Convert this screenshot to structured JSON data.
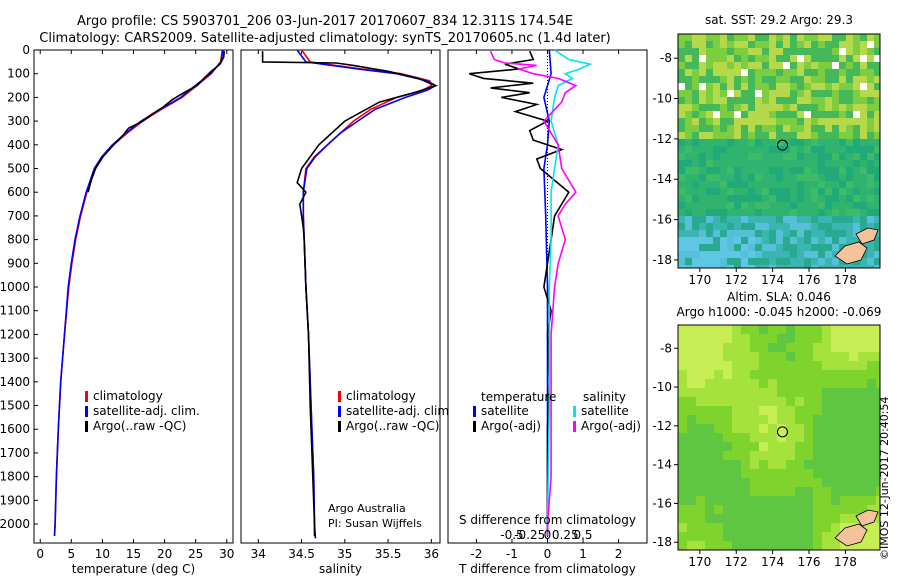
{
  "header": {
    "line1": "Argo profile: CS 5903701_206 03-Jun-2017 20170607_834 12.311S 174.54E",
    "line2": "Climatology: CARS2009. Satellite-adjusted climatology: synTS_20170605.nc (1.4d later)"
  },
  "colors": {
    "clim": "#ff0000",
    "sat": "#0000ff",
    "argo": "#000000",
    "sat_s": "#00e5ee",
    "argo_s": "#ff00ff"
  },
  "chart_data": [
    {
      "id": "temperature",
      "type": "line",
      "xlabel": "temperature (deg C)",
      "ylabel": "",
      "xlim": [
        -1,
        31
      ],
      "ylim": [
        2080,
        0
      ],
      "xticks": [
        0,
        5,
        10,
        15,
        20,
        25,
        30
      ],
      "yticks": [
        0,
        100,
        200,
        300,
        400,
        500,
        600,
        700,
        800,
        900,
        1000,
        1100,
        1200,
        1300,
        1400,
        1500,
        1600,
        1700,
        1800,
        1900,
        2000
      ],
      "legend": [
        "climatology",
        "satellite-adj. clim.",
        "Argo(..raw -QC)"
      ],
      "series": [
        {
          "name": "climatology",
          "color_key": "clim",
          "depth": [
            0,
            50,
            100,
            150,
            200,
            250,
            300,
            350,
            400,
            450,
            500,
            600,
            700,
            800,
            900,
            1000,
            1200,
            1400,
            1600,
            1800,
            2000,
            2050
          ],
          "values": [
            29.3,
            29.0,
            27.5,
            25.2,
            22.8,
            19.5,
            16.5,
            14.0,
            11.8,
            10.0,
            8.8,
            7.5,
            6.5,
            5.7,
            5.1,
            4.6,
            3.9,
            3.3,
            2.9,
            2.6,
            2.4,
            2.3
          ]
        },
        {
          "name": "satellite",
          "color_key": "sat",
          "depth": [
            0,
            50,
            100,
            150,
            200,
            250,
            300,
            350,
            400,
            450,
            500,
            600,
            700,
            800,
            900,
            1000,
            1200,
            1400,
            1600,
            1800,
            2000,
            2050
          ],
          "values": [
            29.4,
            29.1,
            27.4,
            24.9,
            22.6,
            19.3,
            16.2,
            13.8,
            11.6,
            9.9,
            8.7,
            7.4,
            6.4,
            5.6,
            5.0,
            4.5,
            3.9,
            3.3,
            2.9,
            2.6,
            2.4,
            2.3
          ]
        },
        {
          "name": "argo",
          "color_key": "argo",
          "depth": [
            5,
            30,
            60,
            90,
            120,
            150,
            180,
            210,
            240,
            270,
            300,
            330,
            360,
            400,
            450,
            500,
            550,
            600
          ],
          "values": [
            29.6,
            29.5,
            28.9,
            27.5,
            26.3,
            25.2,
            23.1,
            21.2,
            19.8,
            18.0,
            16.5,
            14.2,
            13.3,
            11.8,
            10.1,
            8.9,
            8.2,
            7.7
          ]
        }
      ]
    },
    {
      "id": "salinity",
      "type": "line",
      "xlabel": "salinity",
      "ylabel": "",
      "xlim": [
        33.8,
        36.1
      ],
      "ylim": [
        2080,
        0
      ],
      "xticks": [
        34,
        34.5,
        35,
        35.5,
        36
      ],
      "legend": [
        "climatology",
        "satellite-adj. clim.",
        "Argo(..raw -QC)"
      ],
      "annotation": [
        "Argo Australia",
        "PI: Susan Wijffels"
      ],
      "series": [
        {
          "name": "climatology",
          "color_key": "clim",
          "depth": [
            0,
            50,
            80,
            100,
            130,
            150,
            170,
            200,
            250,
            300,
            350,
            400,
            450,
            500,
            600,
            700,
            800,
            1000,
            1200,
            1400,
            1600,
            1800,
            2000,
            2050
          ],
          "values": [
            34.5,
            34.6,
            35.2,
            35.65,
            35.98,
            36.0,
            35.9,
            35.6,
            35.3,
            35.1,
            34.95,
            34.8,
            34.65,
            34.55,
            34.52,
            34.52,
            34.53,
            34.55,
            34.58,
            34.6,
            34.62,
            34.64,
            34.65,
            34.65
          ]
        },
        {
          "name": "satellite",
          "color_key": "sat",
          "depth": [
            0,
            50,
            80,
            100,
            130,
            150,
            170,
            200,
            250,
            300,
            350,
            400,
            450,
            500,
            600,
            700,
            800,
            1000,
            1200,
            1400,
            1600,
            1800,
            2000,
            2050
          ],
          "values": [
            34.45,
            34.55,
            35.15,
            35.6,
            35.95,
            36.05,
            35.95,
            35.7,
            35.35,
            35.15,
            34.95,
            34.8,
            34.66,
            34.56,
            34.52,
            34.52,
            34.53,
            34.55,
            34.58,
            34.6,
            34.62,
            34.64,
            34.65,
            34.65
          ]
        },
        {
          "name": "argo",
          "color_key": "argo",
          "depth": [
            5,
            50,
            55,
            65,
            90,
            120,
            150,
            180,
            220,
            260,
            300,
            350,
            400,
            450,
            500,
            560,
            600,
            650,
            700,
            750,
            800,
            1000,
            1200,
            1500,
            1800,
            2000,
            2060
          ],
          "values": [
            34.05,
            34.05,
            34.9,
            35.1,
            35.5,
            35.85,
            36.05,
            35.8,
            35.4,
            35.2,
            35.0,
            34.85,
            34.7,
            34.6,
            34.5,
            34.45,
            34.55,
            34.48,
            34.5,
            34.52,
            34.53,
            34.55,
            34.58,
            34.6,
            34.63,
            34.65,
            34.66
          ]
        }
      ]
    },
    {
      "id": "difference",
      "type": "line",
      "xlabel": "T difference from climatology",
      "ylabel": "",
      "xlim": [
        -2.8,
        2.8
      ],
      "ylim": [
        2080,
        0
      ],
      "xticks": [
        -2,
        -1,
        0,
        1,
        2
      ],
      "secondary_xlabel": "S difference from climatology",
      "secondary_xticks": [
        "-0.5",
        "-0.25",
        "0",
        "0.25",
        "0.5"
      ],
      "legend_temperature_title": "temperature",
      "legend_salinity_title": "salinity",
      "legend": [
        "satellite",
        "Argo(-adj)",
        "satellite",
        "Argo(-adj)"
      ],
      "series": [
        {
          "name": "T satellite",
          "color_key": "sat",
          "depth": [
            0,
            100,
            200,
            300,
            400,
            500,
            700,
            1000,
            1500,
            2000,
            2050
          ],
          "values": [
            0.05,
            0.1,
            -0.1,
            0.05,
            0.0,
            -0.1,
            -0.05,
            0.0,
            0.0,
            0.0,
            0.0
          ]
        },
        {
          "name": "T Argo",
          "color_key": "argo",
          "depth": [
            5,
            40,
            60,
            80,
            100,
            120,
            140,
            160,
            180,
            200,
            230,
            260,
            300,
            340,
            380,
            420,
            460,
            500,
            550,
            600,
            650,
            700,
            800,
            900,
            1000,
            1100,
            1200,
            1400,
            1600,
            1800,
            2000,
            2050
          ],
          "values": [
            -0.5,
            -0.4,
            -1.2,
            -0.8,
            -2.2,
            -1.8,
            -0.4,
            -1.6,
            -0.5,
            -1.3,
            -0.3,
            -0.9,
            0.0,
            -0.5,
            -0.4,
            0.4,
            -0.3,
            -0.2,
            0.2,
            0.6,
            0.4,
            0.2,
            0.1,
            0.0,
            -0.1,
            0.1,
            0.0,
            0.05,
            0.0,
            0.0,
            0.0,
            0.0
          ]
        },
        {
          "name": "S satellite",
          "color_key": "sat_s",
          "depth": [
            0,
            40,
            60,
            80,
            100,
            120,
            150,
            200,
            300,
            400,
            500,
            600,
            700,
            800,
            1000,
            1500,
            2000,
            2050
          ],
          "values": [
            0.2,
            0.6,
            1.2,
            0.9,
            0.5,
            0.7,
            0.3,
            0.2,
            0.1,
            0.3,
            0.2,
            0.1,
            0.1,
            0.1,
            0.05,
            0.05,
            0.0,
            0.0
          ]
        },
        {
          "name": "S Argo",
          "color_key": "argo_s",
          "depth": [
            5,
            40,
            55,
            65,
            80,
            100,
            120,
            150,
            180,
            220,
            300,
            400,
            500,
            600,
            650,
            700,
            800,
            900,
            1000,
            1200,
            1500,
            1800,
            2000,
            2050
          ],
          "values": [
            -1.6,
            -1.5,
            -1.2,
            -0.3,
            -0.8,
            -0.4,
            0.3,
            0.8,
            0.5,
            0.4,
            -0.1,
            0.3,
            0.4,
            0.8,
            0.5,
            0.3,
            0.5,
            0.3,
            0.2,
            0.1,
            0.1,
            0.1,
            0.0,
            0.0
          ]
        }
      ]
    },
    {
      "id": "sst_map",
      "type": "heatmap",
      "title": "sat. SST: 29.2  Argo: 29.3",
      "xlim": [
        168.8,
        179.9
      ],
      "ylim": [
        -18.4,
        -6.8
      ],
      "xticks": [
        170,
        172,
        174,
        176,
        178
      ],
      "yticks": [
        -8,
        -10,
        -12,
        -14,
        -16,
        -18
      ],
      "marker": [
        174.54,
        -12.31
      ]
    },
    {
      "id": "sla_map",
      "type": "heatmap",
      "title": "Altim. SLA: 0.046",
      "subtitle": "Argo h1000: -0.045 h2000: -0.069",
      "xlim": [
        168.8,
        179.9
      ],
      "ylim": [
        -18.4,
        -6.8
      ],
      "xticks": [
        170,
        172,
        174,
        176,
        178
      ],
      "yticks": [
        -8,
        -10,
        -12,
        -14,
        -16,
        -18
      ],
      "marker": [
        174.54,
        -12.31
      ]
    }
  ],
  "stamp": "©IMOS 12-Jun-2017 20:40:54"
}
